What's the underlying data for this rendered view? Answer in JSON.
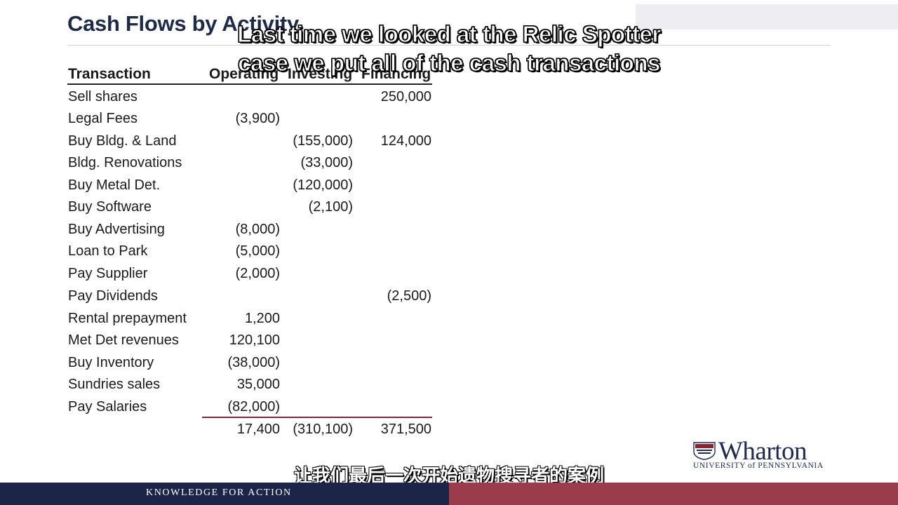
{
  "slide": {
    "title": "Cash Flows by Activity"
  },
  "table": {
    "headers": {
      "transaction": "Transaction",
      "operating": "Operating",
      "investing": "Investing",
      "financing": "Financing"
    },
    "rows": [
      {
        "label": "Sell shares",
        "operating": "",
        "investing": "",
        "financing": "250,000"
      },
      {
        "label": "Legal Fees",
        "operating": "(3,900)",
        "investing": "",
        "financing": ""
      },
      {
        "label": "Buy Bldg. & Land",
        "operating": "",
        "investing": "(155,000)",
        "financing": "124,000"
      },
      {
        "label": "Bldg. Renovations",
        "operating": "",
        "investing": "(33,000)",
        "financing": ""
      },
      {
        "label": "Buy Metal Det.",
        "operating": "",
        "investing": "(120,000)",
        "financing": ""
      },
      {
        "label": "Buy Software",
        "operating": "",
        "investing": "(2,100)",
        "financing": ""
      },
      {
        "label": "Buy Advertising",
        "operating": "(8,000)",
        "investing": "",
        "financing": ""
      },
      {
        "label": "Loan to Park",
        "operating": "(5,000)",
        "investing": "",
        "financing": ""
      },
      {
        "label": "Pay Supplier",
        "operating": "(2,000)",
        "investing": "",
        "financing": ""
      },
      {
        "label": "Pay Dividends",
        "operating": "",
        "investing": "",
        "financing": "(2,500)"
      },
      {
        "label": "Rental prepayment",
        "operating": "1,200",
        "investing": "",
        "financing": ""
      },
      {
        "label": "Met Det revenues",
        "operating": "120,100",
        "investing": "",
        "financing": ""
      },
      {
        "label": "Buy Inventory",
        "operating": "(38,000)",
        "investing": "",
        "financing": ""
      },
      {
        "label": "Sundries sales",
        "operating": "35,000",
        "investing": "",
        "financing": ""
      },
      {
        "label": "Pay Salaries",
        "operating": "(82,000)",
        "investing": "",
        "financing": ""
      }
    ],
    "totals": {
      "operating": "17,400",
      "investing": "(310,100)",
      "financing": "371,500"
    }
  },
  "subtitles": {
    "english_line1": "Last time we looked at the Relic Spotter",
    "english_line2": "case we put all of the cash transactions",
    "chinese": "让我们最后一次开始遗物搜寻者的案例"
  },
  "logo": {
    "name": "Wharton",
    "subtitle": "UNIVERSITY of PENNSYLVANIA",
    "icon": "shield-icon"
  },
  "footer": {
    "tagline": "KNOWLEDGE FOR ACTION"
  },
  "colors": {
    "title": "#1f2a44",
    "footer_navy": "#1c2448",
    "footer_maroon": "#9a3c4c",
    "total_rule": "#7a2a3a"
  }
}
